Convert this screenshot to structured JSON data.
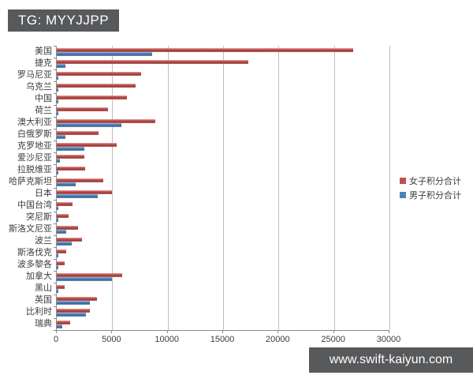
{
  "badges": {
    "top_left": "TG: MYYJJPP",
    "bottom_right": "www.swift-kaiyun.com",
    "badge_bg_color": "#58595b",
    "badge_text_color": "#ffffff"
  },
  "chart_data": {
    "type": "bar",
    "orientation": "horizontal",
    "title": "",
    "xlabel": "",
    "ylabel": "",
    "xlim": [
      0,
      30000
    ],
    "x_ticks": [
      0,
      5000,
      10000,
      15000,
      20000,
      25000,
      30000
    ],
    "grid": "vertical",
    "legend_position": "right",
    "categories": [
      "美国",
      "捷克",
      "罗马尼亚",
      "乌克兰",
      "中国",
      "荷兰",
      "澳大利亚",
      "白俄罗斯",
      "克罗地亚",
      "爱沙尼亚",
      "拉脱维亚",
      "哈萨克斯坦",
      "日本",
      "中国台湾",
      "突尼斯",
      "斯洛文尼亚",
      "波兰",
      "斯洛伐克",
      "波多黎各",
      "加拿大",
      "黑山",
      "英国",
      "比利时",
      "瑞典"
    ],
    "series": [
      {
        "name": "女子积分合计",
        "color": "#c0504d",
        "values": [
          26700,
          17300,
          7600,
          7100,
          6300,
          4600,
          8900,
          3800,
          5400,
          2500,
          2550,
          4200,
          5000,
          1400,
          1100,
          1900,
          2250,
          850,
          730,
          5900,
          700,
          3600,
          3000,
          1200
        ]
      },
      {
        "name": "男子积分合计",
        "color": "#4f81bd",
        "values": [
          8600,
          750,
          150,
          150,
          150,
          150,
          5800,
          750,
          2500,
          250,
          150,
          1700,
          3700,
          150,
          100,
          850,
          1350,
          150,
          100,
          5000,
          150,
          3000,
          2600,
          500
        ]
      }
    ]
  }
}
